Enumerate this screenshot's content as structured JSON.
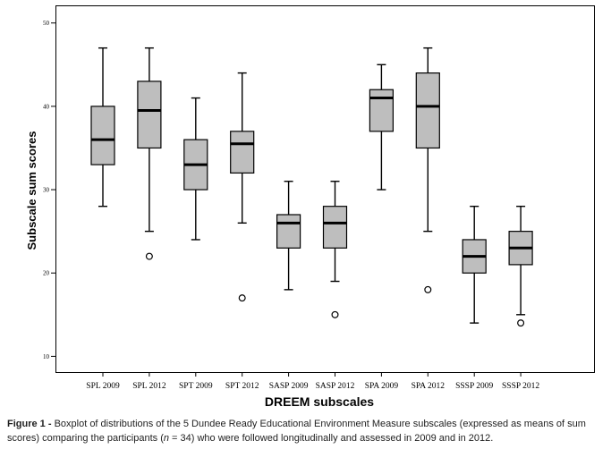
{
  "chart_data": {
    "type": "boxplot",
    "xlabel": "DREEM subscales",
    "ylabel": "Subscale sum scores",
    "ylim": [
      8,
      52
    ],
    "yticks": [
      10,
      20,
      30,
      40,
      50
    ],
    "grid": false,
    "colors": {
      "box_fill": "#bebebe",
      "stroke": "#000000"
    },
    "categories": [
      "SPL 2009",
      "SPL 2012",
      "SPT 2009",
      "SPT 2012",
      "SASP 2009",
      "SASP 2012",
      "SPA 2009",
      "SPA 2012",
      "SSSP 2009",
      "SSSP 2012"
    ],
    "boxes": [
      {
        "label": "SPL 2009",
        "min": 28,
        "q1": 33,
        "median": 36,
        "q3": 40,
        "max": 47,
        "outliers": []
      },
      {
        "label": "SPL 2012",
        "min": 25,
        "q1": 35,
        "median": 39.5,
        "q3": 43,
        "max": 47,
        "outliers": [
          22
        ]
      },
      {
        "label": "SPT 2009",
        "min": 24,
        "q1": 30,
        "median": 33,
        "q3": 36,
        "max": 41,
        "outliers": []
      },
      {
        "label": "SPT 2012",
        "min": 26,
        "q1": 32,
        "median": 35.5,
        "q3": 37,
        "max": 44,
        "outliers": [
          17
        ]
      },
      {
        "label": "SASP 2009",
        "min": 18,
        "q1": 23,
        "median": 26,
        "q3": 27,
        "max": 31,
        "outliers": []
      },
      {
        "label": "SASP 2012",
        "min": 19,
        "q1": 23,
        "median": 26,
        "q3": 28,
        "max": 31,
        "outliers": [
          15
        ]
      },
      {
        "label": "SPA 2009",
        "min": 30,
        "q1": 37,
        "median": 41,
        "q3": 42,
        "max": 45,
        "outliers": []
      },
      {
        "label": "SPA 2012",
        "min": 25,
        "q1": 35,
        "median": 40,
        "q3": 44,
        "max": 47,
        "outliers": [
          18
        ]
      },
      {
        "label": "SSSP 2009",
        "min": 14,
        "q1": 20,
        "median": 22,
        "q3": 24,
        "max": 28,
        "outliers": []
      },
      {
        "label": "SSSP 2012",
        "min": 15,
        "q1": 21,
        "median": 23,
        "q3": 25,
        "max": 28,
        "outliers": [
          14
        ]
      }
    ]
  },
  "caption": {
    "figure_label": "Figure 1 -",
    "text_before_n": " Boxplot of distributions of the 5 Dundee Ready Educational Environment Measure subscales (expressed as means of sum scores) comparing the participants (",
    "n_symbol": "n",
    "text_after_n": " = 34) who were followed longitudinally and assessed in 2009 and in 2012."
  }
}
